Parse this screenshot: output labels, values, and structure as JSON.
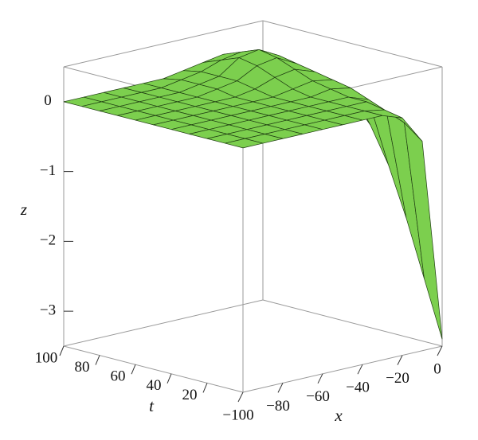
{
  "chart_data": {
    "type": "surface3d",
    "x": [
      -100,
      -90,
      -80,
      -70,
      -60,
      -50,
      -40,
      -30,
      -20,
      -10,
      0
    ],
    "t": [
      0,
      10,
      20,
      30,
      40,
      50,
      60,
      70,
      80,
      90,
      100
    ],
    "z": [
      [
        0,
        0,
        0,
        0,
        0,
        0,
        0,
        0,
        -0.1,
        -0.5,
        -3.4
      ],
      [
        0,
        0,
        0,
        0,
        0,
        0,
        0,
        0,
        -0.05,
        -0.3,
        -2.6
      ],
      [
        0,
        0,
        0,
        0,
        0,
        0,
        0,
        0,
        0,
        -0.2,
        -1.8
      ],
      [
        0,
        0,
        0,
        0,
        0,
        0,
        0,
        0,
        0,
        -0.1,
        -1.1
      ],
      [
        0,
        0,
        0,
        0,
        0,
        0,
        0,
        0,
        0.05,
        0,
        -0.6
      ],
      [
        0,
        0,
        0,
        0,
        0,
        0,
        0,
        0.05,
        0.1,
        0.05,
        -0.3
      ],
      [
        0,
        0,
        0,
        0,
        0,
        0,
        0.05,
        0.15,
        0.2,
        0.1,
        -0.2
      ],
      [
        0,
        0,
        0,
        0,
        0,
        0.05,
        0.1,
        0.25,
        0.3,
        0.15,
        -0.15
      ],
      [
        0,
        0,
        0,
        0,
        0,
        0.05,
        0.1,
        0.3,
        0.35,
        0.2,
        -0.1
      ],
      [
        0,
        0,
        0,
        0,
        0,
        0.05,
        0.1,
        0.2,
        0.25,
        0.1,
        -0.1
      ],
      [
        0,
        0,
        0,
        0,
        0,
        0,
        0.05,
        0.1,
        0.15,
        0.05,
        -0.05
      ]
    ],
    "color": "#7ccf4e",
    "xlabel": "x",
    "ylabel": "t",
    "zlabel": "z",
    "xlim": [
      -100,
      0
    ],
    "ylim": [
      0,
      100
    ],
    "zlim": [
      -3.5,
      0.5
    ],
    "xticks": [
      {
        "value": -100,
        "label": "−100"
      },
      {
        "value": -80,
        "label": "−80"
      },
      {
        "value": -60,
        "label": "−60"
      },
      {
        "value": -40,
        "label": "−40"
      },
      {
        "value": -20,
        "label": "−20"
      },
      0
    ],
    "yticks": [
      20,
      40,
      60,
      80,
      100
    ],
    "zticks": [
      0,
      {
        "value": -1,
        "label": "−1"
      },
      {
        "value": -2,
        "label": "−2"
      },
      {
        "value": -3,
        "label": "−3"
      }
    ]
  }
}
